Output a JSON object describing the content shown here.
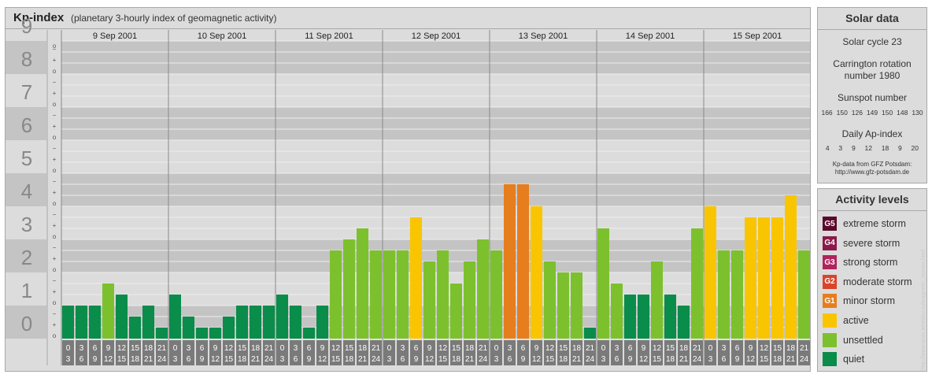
{
  "title": "Kp-index",
  "subtitle": "(planetary 3-hourly index of geomagnetic activity)",
  "solar": {
    "heading": "Solar data",
    "cycle": "Solar cycle 23",
    "carrington_line1": "Carrington rotation",
    "carrington_line2": "number 1980",
    "sunspot_label": "Sunspot number",
    "sunspot_values": [
      "166",
      "150",
      "126",
      "149",
      "150",
      "148",
      "130"
    ],
    "ap_label": "Daily Ap-index",
    "ap_values": [
      "4",
      "3",
      "9",
      "12",
      "18",
      "9",
      "20"
    ],
    "source_line1": "Kp-data from GFZ Potsdam:",
    "source_line2": "http://www.gfz-potsdam.de"
  },
  "legend": {
    "heading": "Activity levels",
    "items": [
      {
        "code": "G5",
        "label": "extreme storm",
        "color": "#5a0a2a"
      },
      {
        "code": "G4",
        "label": "severe storm",
        "color": "#8b1a4a"
      },
      {
        "code": "G3",
        "label": "strong storm",
        "color": "#b0245c"
      },
      {
        "code": "G2",
        "label": "moderate storm",
        "color": "#d9442a"
      },
      {
        "code": "G1",
        "label": "minor storm",
        "color": "#e67e1e"
      },
      {
        "code": "",
        "label": "active",
        "color": "#f9c500"
      },
      {
        "code": "",
        "label": "unsettled",
        "color": "#7cc12d"
      },
      {
        "code": "",
        "label": "quiet",
        "color": "#0a8c4a"
      }
    ]
  },
  "watermark": "http://www.tesis.lebedev.ru/magnetic_storms.html",
  "chart_data": {
    "type": "bar",
    "ylim": [
      0,
      9
    ],
    "y_ticks": [
      "0",
      "1",
      "2",
      "3",
      "4",
      "5",
      "6",
      "7",
      "8",
      "9"
    ],
    "sub_ticks": [
      "o",
      "+",
      "−"
    ],
    "days": [
      "9 Sep 2001",
      "10 Sep 2001",
      "11 Sep 2001",
      "12 Sep 2001",
      "13 Sep 2001",
      "14 Sep 2001",
      "15 Sep 2001"
    ],
    "interval_start": [
      "0",
      "3",
      "6",
      "9",
      "12",
      "15",
      "18",
      "21"
    ],
    "interval_end": [
      "3",
      "6",
      "9",
      "12",
      "15",
      "18",
      "21",
      "24"
    ],
    "values": [
      [
        1.0,
        1.0,
        1.0,
        1.667,
        1.333,
        0.667,
        1.0,
        0.333
      ],
      [
        1.333,
        0.667,
        0.333,
        0.333,
        0.667,
        1.0,
        1.0,
        1.0
      ],
      [
        1.333,
        1.0,
        0.333,
        1.0,
        2.667,
        3.0,
        3.333,
        2.667
      ],
      [
        2.667,
        2.667,
        3.667,
        2.333,
        2.667,
        1.667,
        2.333,
        3.0
      ],
      [
        2.667,
        4.667,
        4.667,
        4.0,
        2.333,
        2.0,
        2.0,
        0.333
      ],
      [
        3.333,
        1.667,
        1.333,
        1.333,
        2.333,
        1.333,
        1.0,
        3.333
      ],
      [
        4.0,
        2.667,
        2.667,
        3.667,
        3.667,
        3.667,
        4.333,
        2.667
      ]
    ]
  }
}
